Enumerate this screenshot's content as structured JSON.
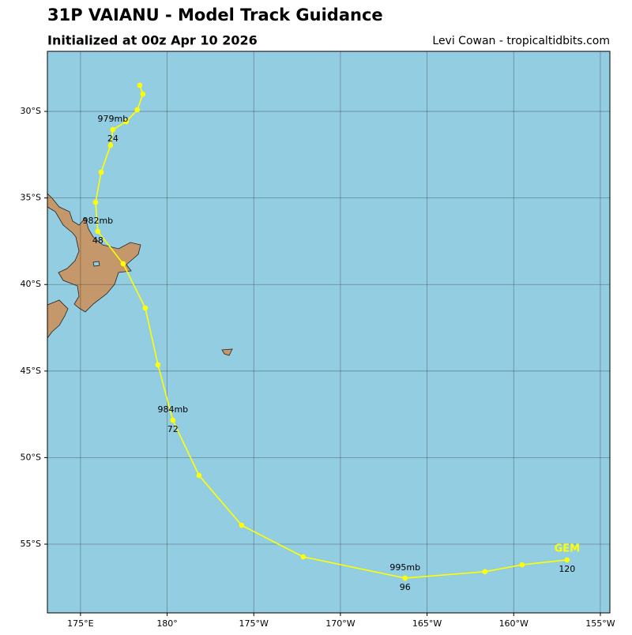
{
  "chart_data": {
    "type": "track-map",
    "title": "31P VAIANU - Model Track Guidance",
    "subtitle": "Initialized at 00z Apr 10 2026",
    "credit": "Levi Cowan - tropicaltidbits.com",
    "xlim": [
      173.09,
      205.55
    ],
    "ylim": [
      -58.97,
      -26.53
    ],
    "xticks": [
      {
        "value": 175,
        "label": "175°E"
      },
      {
        "value": 180,
        "label": "180°"
      },
      {
        "value": 185,
        "label": "175°W"
      },
      {
        "value": 190,
        "label": "170°W"
      },
      {
        "value": 195,
        "label": "165°W"
      },
      {
        "value": 200,
        "label": "160°W"
      },
      {
        "value": 205,
        "label": "155°W"
      }
    ],
    "yticks": [
      {
        "value": -30,
        "label": "30°S"
      },
      {
        "value": -35,
        "label": "35°S"
      },
      {
        "value": -40,
        "label": "40°S"
      },
      {
        "value": -45,
        "label": "45°S"
      },
      {
        "value": -50,
        "label": "50°S"
      },
      {
        "value": -55,
        "label": "55°S"
      }
    ],
    "grid": true,
    "series": [
      {
        "name": "GEM",
        "color": "#ffff00",
        "lon": [
          178.42,
          178.6,
          178.28,
          177.64,
          176.87,
          176.73,
          176.19,
          175.87,
          176.0,
          177.46,
          178.74,
          179.47,
          180.33,
          181.84,
          184.3,
          187.85,
          193.73,
          198.34,
          200.48,
          203.08
        ],
        "lat": [
          -28.49,
          -29.0,
          -29.91,
          -30.59,
          -31.05,
          -31.96,
          -33.51,
          -35.25,
          -36.93,
          -38.8,
          -41.36,
          -44.64,
          -47.84,
          -51.03,
          -53.91,
          -55.73,
          -56.96,
          -56.59,
          -56.19,
          -55.91
        ],
        "pressure_labels": [
          null,
          null,
          null,
          null,
          "979mb",
          null,
          null,
          null,
          "982mb",
          null,
          null,
          null,
          "984mb",
          null,
          null,
          null,
          "995mb",
          null,
          null,
          null
        ],
        "hour_labels": [
          null,
          null,
          null,
          null,
          24,
          null,
          null,
          null,
          48,
          null,
          null,
          null,
          72,
          null,
          null,
          null,
          96,
          null,
          null,
          120
        ]
      }
    ]
  }
}
